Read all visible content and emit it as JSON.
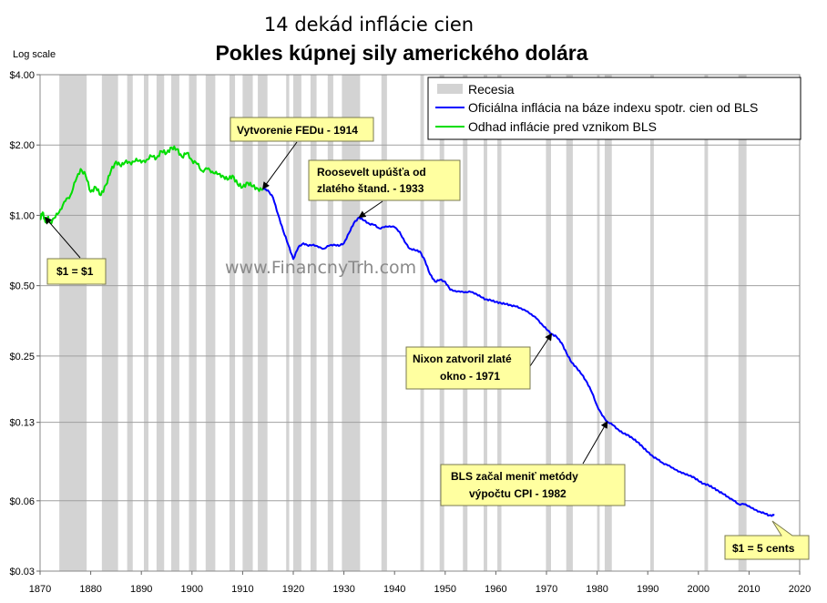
{
  "chart_data": {
    "type": "line",
    "title": "14 dekád inflácie cien",
    "subtitle": "Pokles kúpnej sily amerického dolára",
    "y_scale_note": "Log scale",
    "y_scale": "log",
    "xlim": [
      1870,
      2020
    ],
    "ylim": [
      0.03,
      4.0
    ],
    "x_ticks": [
      1870,
      1880,
      1890,
      1900,
      1910,
      1920,
      1930,
      1940,
      1950,
      1960,
      1970,
      1980,
      1990,
      2000,
      2010,
      2020
    ],
    "y_ticks": [
      {
        "value": 4.0,
        "label": "$4.00"
      },
      {
        "value": 2.0,
        "label": "$2.00"
      },
      {
        "value": 1.0,
        "label": "$1.00"
      },
      {
        "value": 0.5,
        "label": "$0.50"
      },
      {
        "value": 0.25,
        "label": "$0.25"
      },
      {
        "value": 0.13,
        "label": "$0.13"
      },
      {
        "value": 0.06,
        "label": "$0.06"
      },
      {
        "value": 0.03,
        "label": "$0.03"
      }
    ],
    "legend": {
      "position": "top-right",
      "items": [
        {
          "label": "Recesia",
          "color": "#d3d3d3",
          "kind": "band"
        },
        {
          "label": "Oficiálna inflácia na báze indexu spotr. cien od BLS",
          "color": "#0000ff",
          "kind": "line"
        },
        {
          "label": "Odhad inflácie pred vznikom BLS",
          "color": "#00dd00",
          "kind": "line"
        }
      ]
    },
    "recessions": [
      [
        1873.8,
        1879.2
      ],
      [
        1882.2,
        1885.4
      ],
      [
        1887.2,
        1888.3
      ],
      [
        1890.5,
        1891.4
      ],
      [
        1893.0,
        1894.5
      ],
      [
        1895.9,
        1897.5
      ],
      [
        1899.4,
        1900.9
      ],
      [
        1902.7,
        1904.6
      ],
      [
        1907.4,
        1908.5
      ],
      [
        1910.0,
        1912.0
      ],
      [
        1913.0,
        1914.9
      ],
      [
        1918.6,
        1919.2
      ],
      [
        1920.0,
        1921.6
      ],
      [
        1923.4,
        1924.6
      ],
      [
        1926.8,
        1927.9
      ],
      [
        1929.6,
        1933.2
      ],
      [
        1937.4,
        1938.5
      ],
      [
        1945.1,
        1945.8
      ],
      [
        1948.9,
        1949.8
      ],
      [
        1953.5,
        1954.4
      ],
      [
        1957.6,
        1958.3
      ],
      [
        1960.3,
        1961.1
      ],
      [
        1969.9,
        1970.9
      ],
      [
        1973.9,
        1975.2
      ],
      [
        1980.0,
        1980.5
      ],
      [
        1981.5,
        1982.9
      ],
      [
        1990.5,
        1991.2
      ],
      [
        2001.2,
        2001.9
      ],
      [
        2007.9,
        2009.5
      ]
    ],
    "series": [
      {
        "name": "Odhad inflácie pred vznikom BLS",
        "color": "#00dd00",
        "x": [
          1870,
          1870.5,
          1871,
          1871.5,
          1872,
          1873,
          1874,
          1875,
          1876,
          1877,
          1878,
          1879,
          1880,
          1881,
          1882,
          1883,
          1884,
          1885,
          1886,
          1887,
          1888,
          1889,
          1890,
          1891,
          1892,
          1893,
          1894,
          1895,
          1896,
          1897,
          1898,
          1899,
          1900,
          1901,
          1902,
          1903,
          1904,
          1905,
          1906,
          1907,
          1908,
          1909,
          1910,
          1911,
          1912,
          1913,
          1914
        ],
        "y": [
          0.96,
          1.03,
          0.94,
          0.98,
          0.93,
          0.98,
          1.06,
          1.15,
          1.22,
          1.4,
          1.58,
          1.48,
          1.26,
          1.32,
          1.22,
          1.35,
          1.55,
          1.7,
          1.62,
          1.72,
          1.65,
          1.75,
          1.68,
          1.73,
          1.79,
          1.76,
          1.88,
          1.85,
          1.95,
          1.92,
          1.78,
          1.85,
          1.72,
          1.66,
          1.55,
          1.58,
          1.54,
          1.5,
          1.48,
          1.42,
          1.48,
          1.36,
          1.32,
          1.38,
          1.33,
          1.3,
          1.28
        ]
      },
      {
        "name": "Oficiálna inflácia na báze indexu spotr. cien od BLS",
        "color": "#0000ff",
        "x": [
          1914,
          1915,
          1916,
          1917,
          1918,
          1919,
          1920,
          1921,
          1922,
          1923,
          1924,
          1925,
          1926,
          1927,
          1928,
          1929,
          1930,
          1931,
          1932,
          1933,
          1934,
          1935,
          1936,
          1937,
          1938,
          1939,
          1940,
          1941,
          1942,
          1943,
          1944,
          1945,
          1946,
          1947,
          1948,
          1949,
          1950,
          1951,
          1952,
          1953,
          1954,
          1955,
          1956,
          1957,
          1958,
          1959,
          1960,
          1961,
          1962,
          1963,
          1964,
          1965,
          1966,
          1967,
          1968,
          1969,
          1970,
          1971,
          1972,
          1973,
          1974,
          1975,
          1976,
          1977,
          1978,
          1979,
          1980,
          1981,
          1982,
          1983,
          1984,
          1985,
          1986,
          1987,
          1988,
          1989,
          1990,
          1991,
          1992,
          1993,
          1994,
          1995,
          1996,
          1997,
          1998,
          1999,
          2000,
          2001,
          2002,
          2003,
          2004,
          2005,
          2006,
          2007,
          2008,
          2009,
          2010,
          2011,
          2012,
          2013,
          2014,
          2015
        ],
        "y": [
          1.3,
          1.28,
          1.19,
          1.01,
          0.86,
          0.75,
          0.65,
          0.73,
          0.76,
          0.74,
          0.75,
          0.73,
          0.72,
          0.74,
          0.75,
          0.74,
          0.76,
          0.84,
          0.93,
          0.98,
          0.95,
          0.92,
          0.91,
          0.88,
          0.89,
          0.9,
          0.89,
          0.85,
          0.77,
          0.72,
          0.71,
          0.7,
          0.64,
          0.56,
          0.52,
          0.53,
          0.52,
          0.48,
          0.475,
          0.47,
          0.47,
          0.47,
          0.463,
          0.448,
          0.437,
          0.433,
          0.426,
          0.421,
          0.417,
          0.412,
          0.407,
          0.4,
          0.389,
          0.378,
          0.362,
          0.344,
          0.325,
          0.311,
          0.302,
          0.284,
          0.256,
          0.234,
          0.222,
          0.208,
          0.193,
          0.174,
          0.153,
          0.139,
          0.131,
          0.127,
          0.122,
          0.117,
          0.115,
          0.111,
          0.107,
          0.102,
          0.097,
          0.093,
          0.09,
          0.087,
          0.085,
          0.083,
          0.08,
          0.079,
          0.077,
          0.076,
          0.073,
          0.071,
          0.07,
          0.068,
          0.066,
          0.064,
          0.062,
          0.06,
          0.058,
          0.058,
          0.057,
          0.055,
          0.054,
          0.053,
          0.052,
          0.052
        ]
      }
    ],
    "annotations": [
      {
        "id": "fed",
        "lines": [
          "Vytvorenie FEDu - 1914"
        ],
        "color": "#ffff99",
        "target": {
          "x": 1914,
          "y": 1.3
        }
      },
      {
        "id": "roosevelt",
        "lines": [
          "Roosevelt upúšťa od",
          "zlatého štand. - 1933"
        ],
        "color": "#ffff99",
        "target": {
          "x": 1933,
          "y": 0.98
        }
      },
      {
        "id": "dollar",
        "lines": [
          "$1 = $1"
        ],
        "color": "#ffff99",
        "target": {
          "x": 1871,
          "y": 0.98
        }
      },
      {
        "id": "nixon",
        "lines": [
          "Nixon zatvoril zlaté",
          "okno - 1971"
        ],
        "color": "#ffff99",
        "target": {
          "x": 1971,
          "y": 0.311
        }
      },
      {
        "id": "bls",
        "lines": [
          "BLS začal meniť metódy",
          "výpočtu CPI - 1982"
        ],
        "color": "#ffff99",
        "target": {
          "x": 1982,
          "y": 0.131
        }
      },
      {
        "id": "cents",
        "lines": [
          "$1 = 5 cents"
        ],
        "color": "#ffff99",
        "target": {
          "x": 2015,
          "y": 0.052
        }
      }
    ],
    "watermark": "www.FinancnyTrh.com",
    "grid": {
      "horizontal": true,
      "vertical": false
    }
  }
}
